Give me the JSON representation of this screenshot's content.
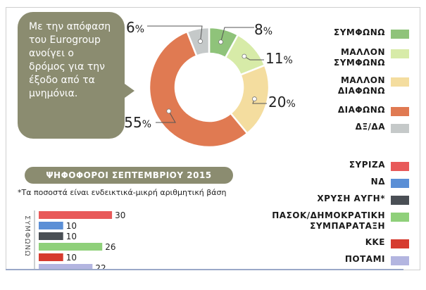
{
  "intro_text": "Με την απόφαση του Eurogroup ανοίγει ο δρόμος για την έξοδο από τα μνημόνια.",
  "chart_data": [
    {
      "type": "pie",
      "donut": true,
      "categories": [
        "ΣΥΜΦΩΝΩ",
        "ΜΑΛΛΟΝ ΣΥΜΦΩΝΩ",
        "ΜΑΛΛΟΝ ΔΙΑΦΩΝΩ",
        "ΔΙΑΦΩΝΩ",
        "ΔΞ/ΔΑ"
      ],
      "values": [
        8,
        11,
        20,
        55,
        6
      ],
      "value_labels": [
        "8%",
        "11%",
        "20%",
        "55%",
        "6%"
      ],
      "colors": [
        "#8fc37a",
        "#d7eba8",
        "#f4dd9f",
        "#e07a52",
        "#c5c9c9"
      ],
      "legend_position": "right"
    },
    {
      "type": "bar",
      "orientation": "horizontal",
      "title": "ΨΗΦΟΦΟΡΟΙ ΣΕΠΤΕΜΒΡΙΟΥ 2015",
      "note": "*Τα ποσοστά είναι ενδεικτικά-μικρή αριθμητική βάση",
      "group_label": "ΣΥΜΦΩΝΩ",
      "categories": [
        "ΣΥΡΙΖΑ",
        "ΝΔ",
        "ΧΡΥΣΗ ΑΥΓΗ*",
        "ΠΑΣΟΚ/ΔΗΜΟΚΡΑΤΙΚΗ ΣΥΜΠΑΡΑΤΑΞΗ",
        "ΚΚΕ",
        "ΠΟΤΑΜΙ"
      ],
      "values": [
        30,
        10,
        10,
        26,
        10,
        22
      ],
      "colors": [
        "#e85a5a",
        "#5b8fd6",
        "#4a4f55",
        "#8fd07a",
        "#d63b2f",
        "#b3b5e0"
      ],
      "legend_position": "right"
    }
  ]
}
